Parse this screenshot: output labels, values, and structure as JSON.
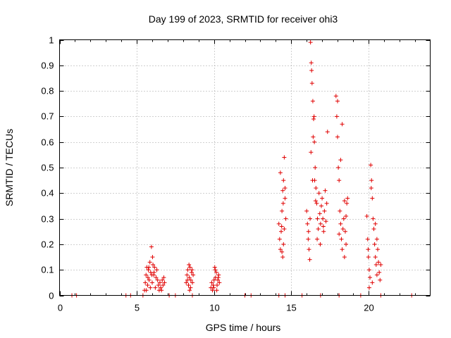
{
  "chart_data": {
    "type": "scatter",
    "title": "Day 199 of 2023, SRMTID for receiver ohi3",
    "xlabel": "GPS time / hours",
    "ylabel": "SRMTID / TECUs",
    "xlim": [
      0,
      24
    ],
    "ylim": [
      0,
      1
    ],
    "xticks": [
      0,
      5,
      10,
      15,
      20
    ],
    "xtick_labels": [
      "0",
      "5",
      "10",
      "15",
      "20"
    ],
    "yticks": [
      0,
      0.1,
      0.2,
      0.3,
      0.4,
      0.5,
      0.6,
      0.7,
      0.8,
      0.9,
      1
    ],
    "ytick_labels": [
      "0",
      "0.1",
      "0.2",
      "0.3",
      "0.4",
      "0.5",
      "0.6",
      "0.7",
      "0.8",
      "0.9",
      "1"
    ],
    "grid": true,
    "marker": "+",
    "series": [
      {
        "name": "SRMTID",
        "color": "#e00000",
        "points": [
          [
            0.8,
            0.0
          ],
          [
            1.1,
            0.0
          ],
          [
            4.3,
            0.0
          ],
          [
            4.6,
            0.0
          ],
          [
            5.4,
            0.0
          ],
          [
            7.1,
            0.0
          ],
          [
            7.5,
            0.0
          ],
          [
            8.6,
            0.0
          ],
          [
            12.0,
            0.0
          ],
          [
            12.4,
            0.0
          ],
          [
            14.2,
            0.0
          ],
          [
            14.6,
            0.0
          ],
          [
            15.7,
            0.0
          ],
          [
            16.9,
            0.0
          ],
          [
            18.1,
            0.0
          ],
          [
            19.5,
            0.0
          ],
          [
            20.8,
            0.0
          ],
          [
            22.8,
            0.0
          ],
          [
            5.5,
            0.02
          ],
          [
            5.55,
            0.05
          ],
          [
            5.6,
            0.08
          ],
          [
            5.65,
            0.11
          ],
          [
            5.7,
            0.04
          ],
          [
            5.75,
            0.1
          ],
          [
            5.8,
            0.06
          ],
          [
            5.85,
            0.13
          ],
          [
            5.9,
            0.09
          ],
          [
            5.95,
            0.19
          ],
          [
            6.0,
            0.05
          ],
          [
            6.05,
            0.12
          ],
          [
            6.1,
            0.08
          ],
          [
            6.15,
            0.11
          ],
          [
            6.2,
            0.03
          ],
          [
            6.25,
            0.07
          ],
          [
            6.3,
            0.1
          ],
          [
            6.35,
            0.06
          ],
          [
            6.4,
            0.04
          ],
          [
            6.5,
            0.05
          ],
          [
            6.6,
            0.02
          ],
          [
            6.7,
            0.04
          ],
          [
            6.75,
            0.07
          ],
          [
            6.8,
            0.05
          ],
          [
            5.62,
            0.02
          ],
          [
            5.72,
            0.07
          ],
          [
            5.88,
            0.03
          ],
          [
            6.02,
            0.15
          ],
          [
            6.12,
            0.09
          ],
          [
            5.78,
            0.11
          ],
          [
            6.55,
            0.03
          ],
          [
            6.65,
            0.06
          ],
          [
            6.45,
            0.02
          ],
          [
            5.98,
            0.08
          ],
          [
            8.2,
            0.05
          ],
          [
            8.25,
            0.08
          ],
          [
            8.3,
            0.1
          ],
          [
            8.35,
            0.04
          ],
          [
            8.4,
            0.07
          ],
          [
            8.45,
            0.11
          ],
          [
            8.5,
            0.06
          ],
          [
            8.55,
            0.09
          ],
          [
            8.6,
            0.05
          ],
          [
            8.65,
            0.08
          ],
          [
            8.38,
            0.12
          ],
          [
            8.48,
            0.03
          ],
          [
            8.28,
            0.06
          ],
          [
            8.58,
            0.1
          ],
          [
            8.42,
            0.02
          ],
          [
            9.8,
            0.03
          ],
          [
            9.85,
            0.05
          ],
          [
            9.9,
            0.02
          ],
          [
            9.95,
            0.04
          ],
          [
            10.0,
            0.06
          ],
          [
            10.05,
            0.11
          ],
          [
            10.1,
            0.07
          ],
          [
            10.15,
            0.09
          ],
          [
            10.2,
            0.04
          ],
          [
            10.25,
            0.06
          ],
          [
            10.3,
            0.08
          ],
          [
            10.35,
            0.05
          ],
          [
            10.08,
            0.1
          ],
          [
            9.98,
            0.03
          ],
          [
            10.18,
            0.02
          ],
          [
            10.28,
            0.07
          ],
          [
            14.2,
            0.28
          ],
          [
            14.25,
            0.22
          ],
          [
            14.3,
            0.18
          ],
          [
            14.35,
            0.25
          ],
          [
            14.4,
            0.33
          ],
          [
            14.45,
            0.41
          ],
          [
            14.5,
            0.45
          ],
          [
            14.55,
            0.54
          ],
          [
            14.6,
            0.38
          ],
          [
            14.65,
            0.3
          ],
          [
            14.4,
            0.17
          ],
          [
            14.5,
            0.2
          ],
          [
            14.55,
            0.26
          ],
          [
            14.3,
            0.48
          ],
          [
            14.45,
            0.15
          ],
          [
            14.6,
            0.42
          ],
          [
            14.38,
            0.27
          ],
          [
            14.48,
            0.36
          ],
          [
            16.0,
            0.33
          ],
          [
            16.05,
            0.28
          ],
          [
            16.1,
            0.22
          ],
          [
            16.15,
            0.18
          ],
          [
            16.2,
            0.14
          ],
          [
            16.25,
            0.99
          ],
          [
            16.3,
            0.91
          ],
          [
            16.35,
            0.83
          ],
          [
            16.4,
            0.76
          ],
          [
            16.45,
            0.69
          ],
          [
            16.5,
            0.6
          ],
          [
            16.55,
            0.5
          ],
          [
            16.6,
            0.42
          ],
          [
            16.65,
            0.36
          ],
          [
            16.7,
            0.3
          ],
          [
            16.75,
            0.26
          ],
          [
            16.8,
            0.4
          ],
          [
            16.85,
            0.32
          ],
          [
            16.9,
            0.28
          ],
          [
            16.95,
            0.35
          ],
          [
            17.0,
            0.38
          ],
          [
            17.05,
            0.3
          ],
          [
            17.1,
            0.25
          ],
          [
            17.15,
            0.33
          ],
          [
            17.2,
            0.41
          ],
          [
            17.25,
            0.29
          ],
          [
            17.3,
            0.36
          ],
          [
            16.28,
            0.56
          ],
          [
            16.38,
            0.45
          ],
          [
            16.48,
            0.7
          ],
          [
            16.58,
            0.37
          ],
          [
            17.35,
            0.64
          ],
          [
            16.12,
            0.25
          ],
          [
            16.22,
            0.3
          ],
          [
            16.68,
            0.22
          ],
          [
            16.88,
            0.2
          ],
          [
            17.08,
            0.27
          ],
          [
            16.32,
            0.88
          ],
          [
            16.42,
            0.62
          ],
          [
            16.52,
            0.45
          ],
          [
            17.9,
            0.78
          ],
          [
            17.95,
            0.7
          ],
          [
            18.0,
            0.62
          ],
          [
            18.05,
            0.5
          ],
          [
            18.1,
            0.45
          ],
          [
            18.15,
            0.33
          ],
          [
            18.2,
            0.28
          ],
          [
            18.25,
            0.22
          ],
          [
            18.3,
            0.18
          ],
          [
            18.35,
            0.26
          ],
          [
            18.4,
            0.3
          ],
          [
            18.45,
            0.37
          ],
          [
            18.5,
            0.25
          ],
          [
            18.55,
            0.2
          ],
          [
            18.6,
            0.36
          ],
          [
            18.65,
            0.38
          ],
          [
            18.3,
            0.67
          ],
          [
            18.2,
            0.53
          ],
          [
            18.0,
            0.76
          ],
          [
            18.1,
            0.24
          ],
          [
            18.45,
            0.15
          ],
          [
            18.55,
            0.31
          ],
          [
            19.9,
            0.31
          ],
          [
            19.95,
            0.22
          ],
          [
            20.0,
            0.15
          ],
          [
            20.05,
            0.1
          ],
          [
            20.1,
            0.07
          ],
          [
            20.15,
            0.51
          ],
          [
            20.2,
            0.45
          ],
          [
            20.25,
            0.38
          ],
          [
            20.3,
            0.3
          ],
          [
            20.35,
            0.26
          ],
          [
            20.4,
            0.2
          ],
          [
            20.45,
            0.15
          ],
          [
            20.5,
            0.12
          ],
          [
            20.55,
            0.22
          ],
          [
            20.6,
            0.18
          ],
          [
            20.65,
            0.13
          ],
          [
            20.7,
            0.09
          ],
          [
            20.75,
            0.06
          ],
          [
            20.8,
            0.12
          ],
          [
            20.05,
            0.03
          ],
          [
            20.25,
            0.05
          ],
          [
            20.45,
            0.28
          ],
          [
            20.55,
            0.08
          ],
          [
            20.18,
            0.42
          ],
          [
            19.98,
            0.18
          ]
        ]
      }
    ]
  }
}
